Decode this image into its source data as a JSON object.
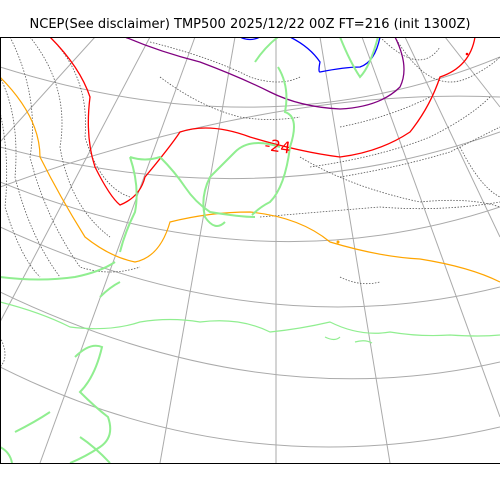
{
  "map": {
    "title": "NCEP(See disclaimer) TMP500 2025/12/22 00Z FT=216 (init 1300Z)",
    "variable": "TMP500",
    "contour_label": "-24",
    "colors": {
      "graticule": "#aaaaaa",
      "coastline": "#90ee90",
      "dotted_isotherm": "#555555",
      "isotherm_orange": "#ffa500",
      "isotherm_red": "#ff0000",
      "isotherm_purple": "#800080",
      "isotherm_blue": "#0000ff",
      "label_red": "#ff0000"
    }
  }
}
